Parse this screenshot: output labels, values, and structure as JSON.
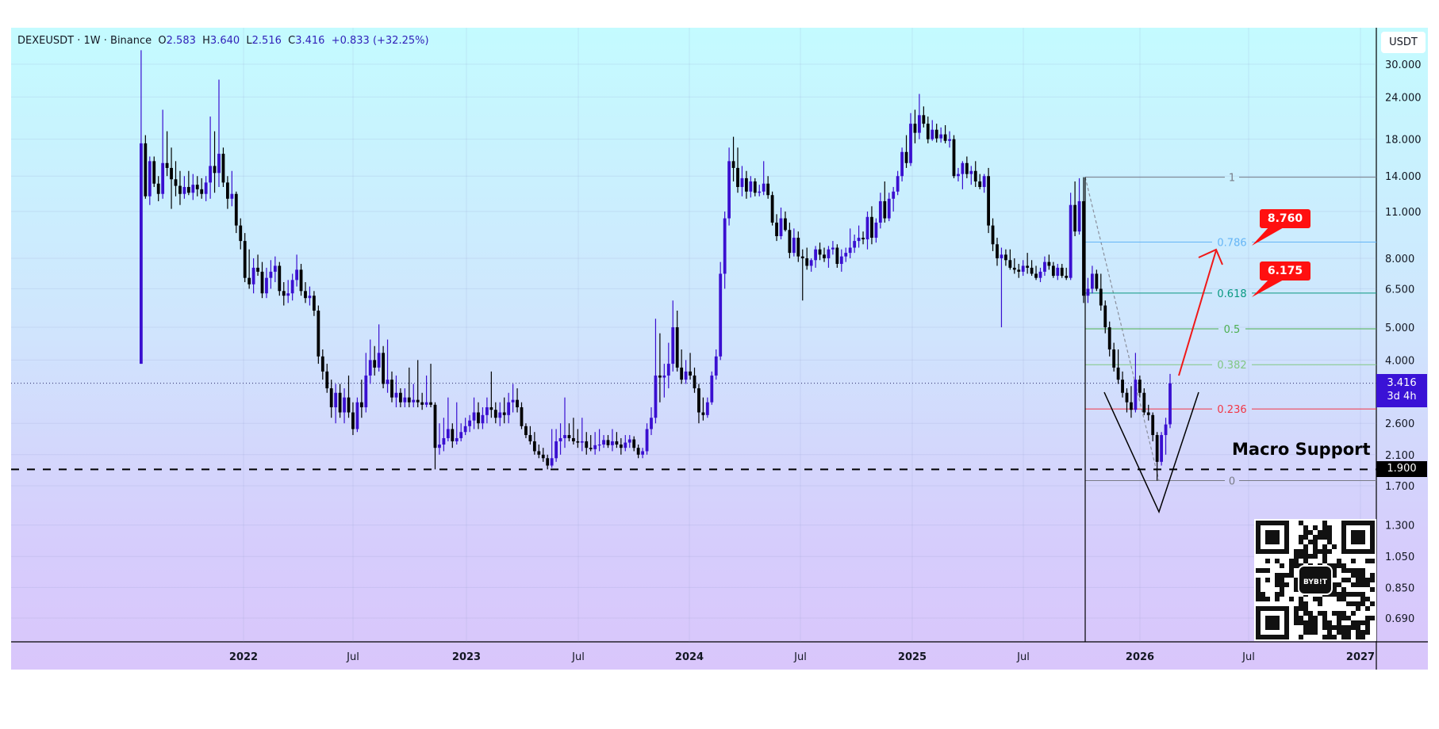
{
  "header": {
    "symbol": "DEXEUSDT",
    "interval": "1W",
    "exchange": "Binance",
    "separator": "·",
    "open_label": "O",
    "open": "2.583",
    "high_label": "H",
    "high": "3.640",
    "low_label": "L",
    "low": "2.516",
    "close_label": "C",
    "close": "3.416",
    "change": "+0.833 (+32.25%)"
  },
  "currency_button": "USDT",
  "last_price": {
    "value": "3.416",
    "countdown": "3d 4h",
    "color": "#3a12d6"
  },
  "support": {
    "label": "Macro Support",
    "price": 1.9,
    "price_label": "1.900"
  },
  "fib": {
    "high": 13.9,
    "low": 1.76,
    "levels": [
      {
        "ratio": 1,
        "label": "1",
        "color": "#787b86"
      },
      {
        "ratio": 0.786,
        "label": "0.786",
        "color": "#64b5f6"
      },
      {
        "ratio": 0.618,
        "label": "0.618",
        "color": "#089981"
      },
      {
        "ratio": 0.5,
        "label": "0.5",
        "color": "#4caf50"
      },
      {
        "ratio": 0.382,
        "label": "0.382",
        "color": "#81c784"
      },
      {
        "ratio": 0.236,
        "label": "0.236",
        "color": "#f23645"
      },
      {
        "ratio": 0,
        "label": "0",
        "color": "#787b86"
      }
    ]
  },
  "targets": [
    {
      "label": "8.760"
    },
    {
      "label": "6.175"
    }
  ],
  "qr": {
    "brand": "BYB!T"
  },
  "colors": {
    "up": "#3a0fd0",
    "down": "#000000",
    "arrow": "#f01818",
    "target_bg": "#ff1010"
  },
  "chart_data": {
    "type": "candlestick",
    "interval": "1W",
    "scale": "log",
    "grid": true,
    "legend": "none",
    "ylim": [
      0.62,
      36
    ],
    "y_ticks": [
      "30.000",
      "24.000",
      "18.000",
      "14.000",
      "11.000",
      "8.000",
      "6.500",
      "5.000",
      "4.000",
      "2.600",
      "2.100",
      "1.700",
      "1.300",
      "1.050",
      "0.850",
      "0.690"
    ],
    "x_ticks": [
      "2022",
      "Jul",
      "2023",
      "Jul",
      "2024",
      "Jul",
      "2025",
      "Jul",
      "2026",
      "Jul",
      "2027"
    ],
    "ohlc": [
      [
        3.9,
        33,
        3.9,
        17.5
      ],
      [
        17.5,
        18.5,
        12,
        12.2
      ],
      [
        12.2,
        16,
        11.5,
        15.5
      ],
      [
        15.5,
        16,
        13,
        13.3
      ],
      [
        13.3,
        14,
        11.8,
        12.4
      ],
      [
        12.4,
        22,
        12,
        15.3
      ],
      [
        15.3,
        19,
        14,
        14.8
      ],
      [
        14.8,
        17,
        11.2,
        13.7
      ],
      [
        13.7,
        15.5,
        12.2,
        13.1
      ],
      [
        13.1,
        14.5,
        11.5,
        12.4
      ],
      [
        12.4,
        14,
        12,
        13
      ],
      [
        13,
        14.5,
        12.3,
        12.5
      ],
      [
        12.5,
        14.2,
        11.9,
        13.2
      ],
      [
        13.2,
        14,
        12.2,
        12.8
      ],
      [
        12.8,
        13.8,
        12,
        12.4
      ],
      [
        12.4,
        14,
        11.8,
        13.4
      ],
      [
        13.4,
        21,
        12,
        15
      ],
      [
        15,
        19,
        12.5,
        14.3
      ],
      [
        14.3,
        27,
        13,
        16.3
      ],
      [
        16.3,
        17,
        13,
        13.4
      ],
      [
        13.4,
        14,
        11.2,
        12
      ],
      [
        12,
        14.5,
        11.4,
        12.4
      ],
      [
        12.4,
        12.6,
        9.5,
        10
      ],
      [
        10,
        10.5,
        8.5,
        9
      ],
      [
        9,
        9.5,
        6.8,
        7
      ],
      [
        7,
        8.5,
        6.5,
        6.7
      ],
      [
        6.7,
        8,
        6.3,
        7.5
      ],
      [
        7.5,
        8.2,
        7.1,
        7.3
      ],
      [
        7.3,
        7.8,
        6.1,
        6.3
      ],
      [
        6.3,
        7.5,
        6.1,
        7
      ],
      [
        7,
        7.9,
        6.5,
        7.3
      ],
      [
        7.3,
        8.1,
        6.8,
        7.6
      ],
      [
        7.6,
        7.8,
        6.2,
        6.4
      ],
      [
        6.4,
        6.8,
        5.8,
        6.2
      ],
      [
        6.2,
        6.9,
        5.9,
        6.3
      ],
      [
        6.3,
        7.2,
        6.0,
        6.9
      ],
      [
        6.9,
        8.2,
        6.6,
        7.4
      ],
      [
        7.4,
        7.7,
        6.2,
        6.4
      ],
      [
        6.4,
        6.8,
        5.9,
        6.1
      ],
      [
        6.1,
        6.6,
        5.8,
        6.2
      ],
      [
        6.2,
        6.4,
        5.4,
        5.6
      ],
      [
        5.6,
        5.8,
        3.9,
        4.1
      ],
      [
        4.1,
        4.3,
        3.5,
        3.7
      ],
      [
        3.7,
        3.9,
        3.2,
        3.3
      ],
      [
        3.3,
        3.5,
        2.7,
        2.9
      ],
      [
        2.9,
        3.4,
        2.6,
        3.2
      ],
      [
        3.2,
        3.4,
        2.7,
        2.8
      ],
      [
        2.8,
        3.3,
        2.6,
        3.1
      ],
      [
        3.1,
        3.6,
        2.7,
        2.8
      ],
      [
        2.8,
        3.0,
        2.4,
        2.5
      ],
      [
        2.5,
        3.1,
        2.45,
        3.0
      ],
      [
        3,
        3.5,
        2.7,
        2.9
      ],
      [
        2.9,
        4.2,
        2.8,
        3.6
      ],
      [
        3.6,
        4.6,
        3.4,
        4.0
      ],
      [
        4,
        4.4,
        3.6,
        3.8
      ],
      [
        3.8,
        5.1,
        3.7,
        4.2
      ],
      [
        4.2,
        4.4,
        3.3,
        3.4
      ],
      [
        3.4,
        4.6,
        3.2,
        3.5
      ],
      [
        3.5,
        3.7,
        3.0,
        3.1
      ],
      [
        3.1,
        3.6,
        2.9,
        3.2
      ],
      [
        3.2,
        3.3,
        2.9,
        3.0
      ],
      [
        3,
        3.3,
        2.9,
        3.1
      ],
      [
        3.1,
        3.8,
        2.9,
        3.0
      ],
      [
        3,
        3.4,
        2.9,
        3.05
      ],
      [
        3.05,
        4.0,
        2.9,
        3.0
      ],
      [
        3,
        3.2,
        2.85,
        2.95
      ],
      [
        2.95,
        3.6,
        2.9,
        3.0
      ],
      [
        3,
        3.9,
        2.9,
        2.95
      ],
      [
        2.95,
        3.0,
        1.9,
        2.2
      ],
      [
        2.2,
        2.6,
        2.1,
        2.25
      ],
      [
        2.25,
        2.7,
        2.15,
        2.35
      ],
      [
        2.35,
        3.1,
        2.3,
        2.5
      ],
      [
        2.5,
        2.6,
        2.2,
        2.3
      ],
      [
        2.3,
        3.0,
        2.25,
        2.35
      ],
      [
        2.35,
        2.6,
        2.3,
        2.45
      ],
      [
        2.45,
        2.7,
        2.4,
        2.55
      ],
      [
        2.55,
        2.75,
        2.45,
        2.65
      ],
      [
        2.65,
        3.1,
        2.5,
        2.8
      ],
      [
        2.8,
        3.0,
        2.5,
        2.6
      ],
      [
        2.6,
        2.9,
        2.5,
        2.75
      ],
      [
        2.75,
        3.1,
        2.6,
        2.9
      ],
      [
        2.9,
        3.7,
        2.7,
        2.85
      ],
      [
        2.85,
        3.0,
        2.6,
        2.7
      ],
      [
        2.7,
        3.0,
        2.55,
        2.8
      ],
      [
        2.8,
        3.1,
        2.6,
        2.75
      ],
      [
        2.75,
        3.2,
        2.6,
        3.0
      ],
      [
        3,
        3.4,
        2.8,
        3.05
      ],
      [
        3.05,
        3.3,
        2.8,
        2.9
      ],
      [
        2.9,
        3.0,
        2.5,
        2.55
      ],
      [
        2.55,
        2.6,
        2.35,
        2.4
      ],
      [
        2.4,
        2.55,
        2.25,
        2.3
      ],
      [
        2.3,
        2.45,
        2.1,
        2.15
      ],
      [
        2.15,
        2.25,
        2.05,
        2.1
      ],
      [
        2.1,
        2.2,
        2.0,
        2.05
      ],
      [
        2.05,
        2.1,
        1.9,
        1.95
      ],
      [
        1.95,
        2.5,
        1.92,
        2.05
      ],
      [
        2.05,
        2.5,
        2.0,
        2.3
      ],
      [
        2.3,
        2.6,
        2.1,
        2.35
      ],
      [
        2.35,
        3.1,
        2.2,
        2.4
      ],
      [
        2.4,
        2.6,
        2.3,
        2.35
      ],
      [
        2.35,
        2.7,
        2.25,
        2.3
      ],
      [
        2.3,
        2.5,
        2.2,
        2.28
      ],
      [
        2.28,
        2.7,
        2.15,
        2.3
      ],
      [
        2.3,
        2.45,
        2.1,
        2.2
      ],
      [
        2.2,
        2.4,
        2.15,
        2.18
      ],
      [
        2.18,
        2.45,
        2.1,
        2.24
      ],
      [
        2.24,
        2.5,
        2.15,
        2.25
      ],
      [
        2.25,
        2.4,
        2.2,
        2.32
      ],
      [
        2.32,
        2.4,
        2.2,
        2.24
      ],
      [
        2.24,
        2.5,
        2.15,
        2.3
      ],
      [
        2.3,
        2.45,
        2.2,
        2.25
      ],
      [
        2.25,
        2.35,
        2.1,
        2.2
      ],
      [
        2.2,
        2.4,
        2.15,
        2.28
      ],
      [
        2.28,
        2.4,
        2.2,
        2.33
      ],
      [
        2.33,
        2.38,
        2.15,
        2.2
      ],
      [
        2.2,
        2.25,
        2.05,
        2.1
      ],
      [
        2.1,
        2.2,
        2.05,
        2.15
      ],
      [
        2.15,
        2.6,
        2.1,
        2.5
      ],
      [
        2.5,
        2.9,
        2.4,
        2.7
      ],
      [
        2.7,
        5.3,
        2.6,
        3.6
      ],
      [
        3.6,
        4.8,
        3.0,
        3.55
      ],
      [
        3.55,
        3.9,
        3.1,
        3.6
      ],
      [
        3.6,
        4.5,
        3.3,
        3.9
      ],
      [
        3.9,
        6.0,
        3.7,
        5.0
      ],
      [
        5,
        5.6,
        3.7,
        3.8
      ],
      [
        3.8,
        4.3,
        3.4,
        3.5
      ],
      [
        3.5,
        4.0,
        3.4,
        3.7
      ],
      [
        3.7,
        4.2,
        3.5,
        3.6
      ],
      [
        3.6,
        3.8,
        3.2,
        3.3
      ],
      [
        3.3,
        3.4,
        2.6,
        2.8
      ],
      [
        2.8,
        3.1,
        2.65,
        2.75
      ],
      [
        2.75,
        3.1,
        2.7,
        3.0
      ],
      [
        3,
        3.7,
        2.95,
        3.6
      ],
      [
        3.6,
        4.3,
        3.5,
        4.1
      ],
      [
        4.1,
        7.8,
        4.0,
        7.2
      ],
      [
        7.2,
        11,
        6.5,
        10.5
      ],
      [
        10.5,
        17,
        10,
        15.5
      ],
      [
        15.5,
        18.3,
        13.5,
        14.8
      ],
      [
        14.8,
        17,
        12.5,
        13
      ],
      [
        13,
        15,
        12.2,
        13.8
      ],
      [
        13.8,
        14.5,
        12,
        12.6
      ],
      [
        12.6,
        14,
        12.1,
        13.5
      ],
      [
        13.5,
        13.8,
        12.2,
        12.5
      ],
      [
        12.5,
        13.2,
        12.2,
        12.6
      ],
      [
        12.6,
        15.5,
        12.3,
        13.3
      ],
      [
        13.3,
        14,
        12,
        12.3
      ],
      [
        12.3,
        12.6,
        10,
        10.2
      ],
      [
        10.2,
        10.8,
        9,
        9.3
      ],
      [
        9.3,
        11.3,
        9.1,
        10.5
      ],
      [
        10.5,
        11,
        9.6,
        9.7
      ],
      [
        9.7,
        10.2,
        8.0,
        8.3
      ],
      [
        8.3,
        9.8,
        8.1,
        9.2
      ],
      [
        9.2,
        9.6,
        7.8,
        8.1
      ],
      [
        8.1,
        8.5,
        6.0,
        8.0
      ],
      [
        8,
        8.6,
        7.4,
        7.6
      ],
      [
        7.6,
        8.0,
        7.3,
        7.9
      ],
      [
        7.9,
        8.7,
        7.5,
        8.5
      ],
      [
        8.5,
        8.9,
        7.9,
        8.2
      ],
      [
        8.2,
        8.6,
        7.8,
        8.0
      ],
      [
        8,
        8.7,
        7.5,
        8.5
      ],
      [
        8.5,
        9.0,
        8.2,
        8.6
      ],
      [
        8.6,
        8.8,
        7.5,
        7.7
      ],
      [
        7.7,
        8.5,
        7.3,
        8.1
      ],
      [
        8.1,
        8.6,
        7.8,
        8.3
      ],
      [
        8.3,
        9.8,
        8.0,
        8.6
      ],
      [
        8.6,
        9.4,
        8.3,
        9.0
      ],
      [
        9,
        10,
        8.6,
        9.2
      ],
      [
        9.2,
        9.6,
        8.8,
        9.1
      ],
      [
        9.1,
        11,
        8.5,
        10.6
      ],
      [
        10.6,
        11.4,
        8.8,
        9.2
      ],
      [
        9.2,
        10.5,
        8.9,
        10.2
      ],
      [
        10.2,
        12.5,
        9.8,
        11.8
      ],
      [
        11.8,
        13.5,
        10.2,
        10.5
      ],
      [
        10.5,
        12.5,
        10.3,
        12
      ],
      [
        12,
        13,
        11,
        12.6
      ],
      [
        12.6,
        14.5,
        12.3,
        14
      ],
      [
        14,
        17,
        13.5,
        16.5
      ],
      [
        16.5,
        18.5,
        14.8,
        15.3
      ],
      [
        15.3,
        21.5,
        15,
        20
      ],
      [
        20,
        22,
        17.5,
        18.8
      ],
      [
        18.8,
        24.5,
        18,
        21.2
      ],
      [
        21.2,
        22.5,
        19.5,
        20
      ],
      [
        20,
        21,
        17.5,
        18
      ],
      [
        18,
        20.5,
        17.8,
        19.2
      ],
      [
        19.2,
        20,
        17.6,
        18.1
      ],
      [
        18.1,
        19.5,
        17.6,
        18.6
      ],
      [
        18.6,
        19.8,
        17.5,
        17.8
      ],
      [
        17.8,
        19,
        17,
        18
      ],
      [
        18,
        18.5,
        13.8,
        14
      ],
      [
        14,
        14.8,
        13.5,
        14.2
      ],
      [
        14.2,
        15.5,
        12.8,
        15.3
      ],
      [
        15.3,
        16,
        13.8,
        14.2
      ],
      [
        14.2,
        15,
        13.2,
        14.5
      ],
      [
        14.5,
        15.5,
        13,
        13.5
      ],
      [
        13.5,
        14.2,
        12.8,
        13
      ],
      [
        13,
        14.2,
        12.5,
        14
      ],
      [
        14,
        14.8,
        9.5,
        10
      ],
      [
        10,
        10.5,
        8.4,
        8.8
      ],
      [
        8.8,
        9.2,
        7.6,
        8
      ],
      [
        8,
        8.6,
        5.0,
        8.2
      ],
      [
        8.2,
        8.5,
        7.6,
        7.9
      ],
      [
        7.9,
        8.5,
        7.4,
        7.5
      ],
      [
        7.5,
        8.0,
        7.2,
        7.4
      ],
      [
        7.4,
        7.7,
        7.0,
        7.3
      ],
      [
        7.3,
        7.9,
        7.1,
        7.6
      ],
      [
        7.6,
        8.3,
        7.2,
        7.5
      ],
      [
        7.5,
        7.9,
        7.1,
        7.2
      ],
      [
        7.2,
        7.6,
        6.9,
        7.0
      ],
      [
        7,
        7.5,
        6.8,
        7.3
      ],
      [
        7.3,
        8.1,
        7.1,
        7.8
      ],
      [
        7.8,
        8.2,
        7.4,
        7.6
      ],
      [
        7.6,
        7.8,
        7.0,
        7.1
      ],
      [
        7.1,
        7.7,
        6.9,
        7.5
      ],
      [
        7.5,
        7.7,
        7.0,
        7.1
      ],
      [
        7.1,
        7.5,
        6.9,
        7.0
      ],
      [
        7,
        12.5,
        6.9,
        11.5
      ],
      [
        11.5,
        13.5,
        9.3,
        9.6
      ],
      [
        9.6,
        13.8,
        9.4,
        11.8
      ],
      [
        11.8,
        13.9,
        5.9,
        6.2
      ],
      [
        6.2,
        7.0,
        5.9,
        6.5
      ],
      [
        6.5,
        7.6,
        6.3,
        7.2
      ],
      [
        7.2,
        7.4,
        6.4,
        6.5
      ],
      [
        6.5,
        7.2,
        5.6,
        5.8
      ],
      [
        5.8,
        6.0,
        4.8,
        5.0
      ],
      [
        5,
        5.2,
        4.1,
        4.3
      ],
      [
        4.3,
        4.5,
        3.7,
        3.8
      ],
      [
        3.8,
        4.3,
        3.4,
        3.5
      ],
      [
        3.5,
        3.7,
        3.1,
        3.2
      ],
      [
        3.2,
        3.3,
        2.8,
        3.0
      ],
      [
        3,
        3.35,
        2.7,
        2.85
      ],
      [
        2.85,
        4.2,
        2.8,
        3.5
      ],
      [
        3.5,
        3.6,
        3.1,
        3.2
      ],
      [
        3.2,
        3.3,
        2.75,
        2.8
      ],
      [
        2.8,
        2.95,
        2.65,
        2.75
      ],
      [
        2.75,
        2.8,
        2.3,
        2.4
      ],
      [
        2.4,
        2.45,
        1.76,
        2.0
      ],
      [
        2.0,
        2.45,
        1.95,
        2.4
      ],
      [
        2.4,
        2.7,
        2.1,
        2.58
      ],
      [
        2.583,
        3.64,
        2.516,
        3.416
      ]
    ]
  }
}
